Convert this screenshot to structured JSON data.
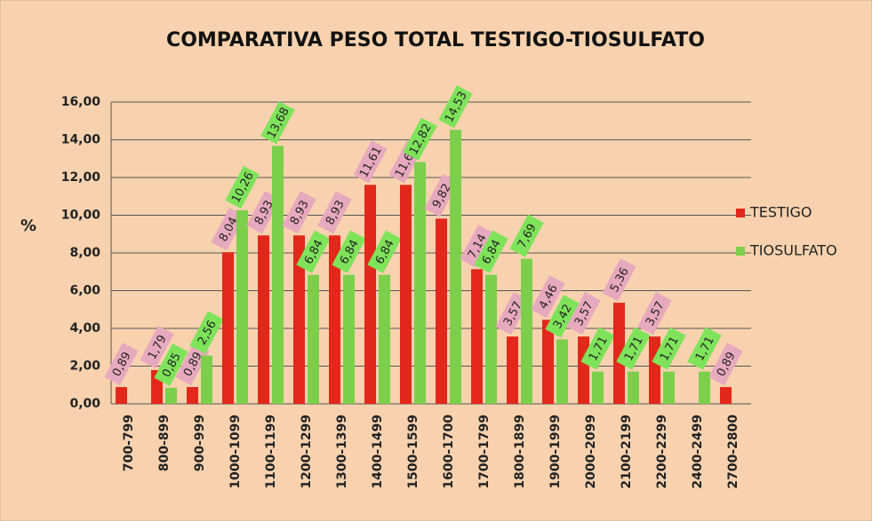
{
  "chart_data": {
    "type": "bar",
    "title": "COMPARATIVA PESO TOTAL TESTIGO-TIOSULFATO",
    "y_label": "%",
    "categories": [
      "700-799",
      "800-899",
      "900-999",
      "1000-1099",
      "1100-1199",
      "1200-1299",
      "1300-1399",
      "1400-1499",
      "1500-1599",
      "1600-1700",
      "1700-1799",
      "1800-1899",
      "1900-1999",
      "2000-2099",
      "2100-2199",
      "2200-2299",
      "2400-2499",
      "2700-2800"
    ],
    "series": [
      {
        "name": "TESTIGO",
        "color": "#e2281a",
        "values": [
          0.89,
          1.79,
          0.89,
          8.04,
          8.93,
          8.93,
          8.93,
          11.61,
          11.61,
          9.82,
          7.14,
          3.57,
          4.46,
          3.57,
          5.36,
          3.57,
          null,
          0.89
        ],
        "value_labels": [
          "0,89",
          "1,79",
          "0,89",
          "8,04",
          "8,93",
          "8,93",
          "8,93",
          "11,61",
          "11,61",
          "9,82",
          "7,14",
          "3,57",
          "4,46",
          "3,57",
          "5,36",
          "3,57",
          null,
          "0,89"
        ]
      },
      {
        "name": "TIOSULFATO",
        "color": "#7ccf4a",
        "values": [
          null,
          0.85,
          2.56,
          10.26,
          13.68,
          6.84,
          6.84,
          6.84,
          12.82,
          14.53,
          6.84,
          7.69,
          3.42,
          1.71,
          1.71,
          1.71,
          1.71,
          null
        ],
        "value_labels": [
          null,
          "0,85",
          "2,56",
          "10,26",
          "13,68",
          "6,84",
          "6,84",
          "6,84",
          "12,82",
          "14,53",
          "6,84",
          "7,69",
          "3,42",
          "1,71",
          "1,71",
          "1,71",
          "1,71",
          null
        ]
      }
    ],
    "ylim": [
      0,
      16
    ],
    "yticks": [
      {
        "value": 0,
        "label": "0,00"
      },
      {
        "value": 2,
        "label": "2,00"
      },
      {
        "value": 4,
        "label": "4,00"
      },
      {
        "value": 6,
        "label": "6,00"
      },
      {
        "value": 8,
        "label": "8,00"
      },
      {
        "value": 10,
        "label": "10,00"
      },
      {
        "value": 12,
        "label": "12,00"
      },
      {
        "value": 14,
        "label": "14,00"
      },
      {
        "value": 16,
        "label": "16,00"
      }
    ],
    "grid": true,
    "legend": "right"
  }
}
